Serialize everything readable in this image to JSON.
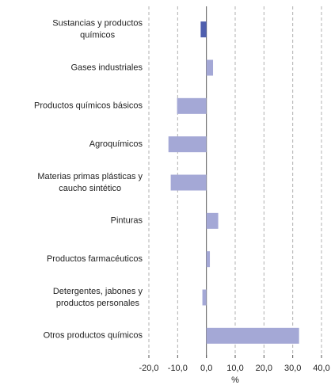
{
  "chart_data": {
    "type": "barh",
    "categories": [
      [
        "Sustancias y productos",
        "químicos"
      ],
      [
        "Gases industriales"
      ],
      [
        "Productos químicos básicos"
      ],
      [
        "Agroquímicos"
      ],
      [
        "Materias primas plásticas y",
        "caucho sintético"
      ],
      [
        "Pinturas"
      ],
      [
        "Productos farmacéuticos"
      ],
      [
        "Detergentes, jabones y",
        "productos personales"
      ],
      [
        "Otros productos químicos"
      ]
    ],
    "values": [
      -2.0,
      2.3,
      -10.2,
      -13.2,
      -12.4,
      4.1,
      1.2,
      -1.4,
      32.2
    ],
    "colors": [
      "#4f5fae",
      "#a4a8d6",
      "#a4a8d6",
      "#a4a8d6",
      "#a4a8d6",
      "#a4a8d6",
      "#a4a8d6",
      "#a4a8d6",
      "#a4a8d6"
    ],
    "xlim": [
      -20,
      40
    ],
    "xticks": [
      {
        "value": -20,
        "label": "-20,0"
      },
      {
        "value": -10,
        "label": "-10,0"
      },
      {
        "value": 0,
        "label": "0,0"
      },
      {
        "value": 10,
        "label": "10,0"
      },
      {
        "value": 20,
        "label": "20,0"
      },
      {
        "value": 30,
        "label": "30,0"
      },
      {
        "value": 40,
        "label": "40,0"
      }
    ],
    "xlabel": "%",
    "grid": true
  }
}
